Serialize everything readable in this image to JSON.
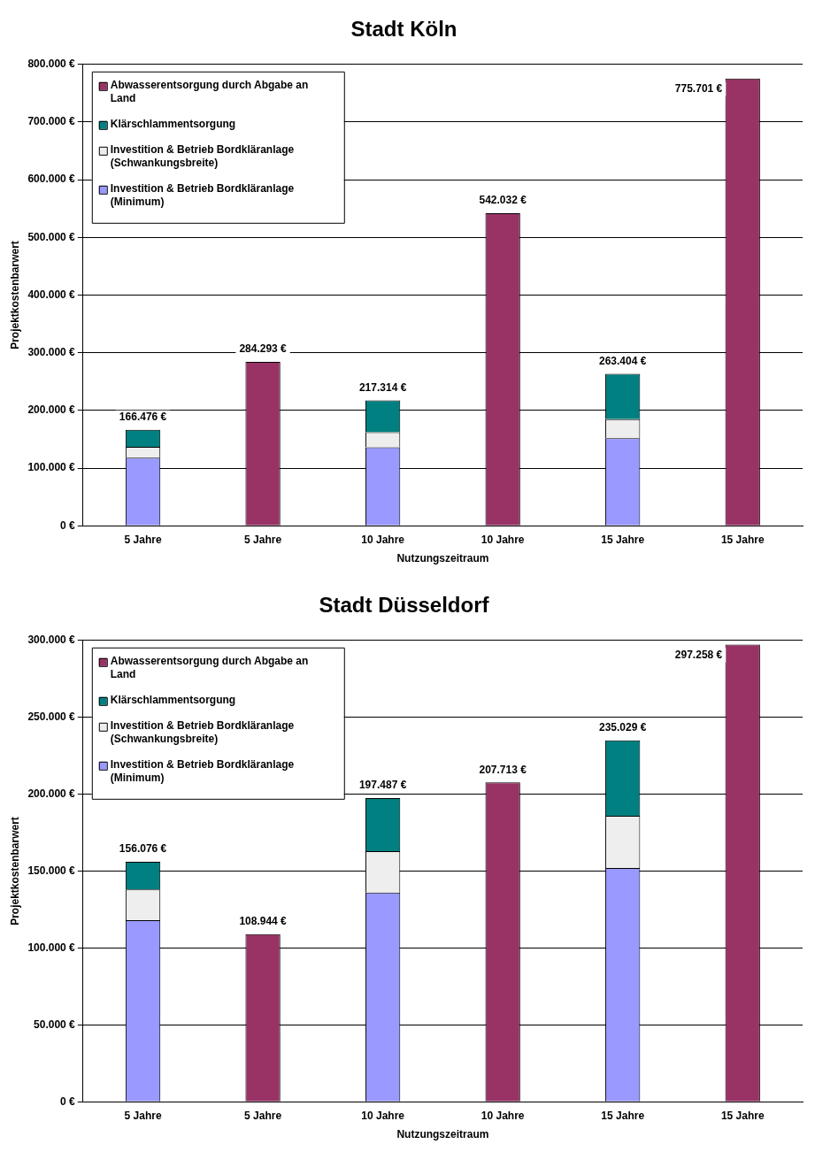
{
  "chart_data": [
    {
      "type": "bar",
      "title": "Stadt Köln",
      "xlabel": "Nutzungszeitraum",
      "ylabel": "Projektkostenbarwert",
      "stacked": true,
      "categories": [
        "5 Jahre",
        "5 Jahre",
        "10 Jahre",
        "10 Jahre",
        "15 Jahre",
        "15 Jahre"
      ],
      "series": [
        {
          "name": "Investition & Betrieb Bordkläranlage (Minimum)",
          "color": "#9999ff",
          "values": [
            118000,
            null,
            136000,
            null,
            152000,
            null
          ]
        },
        {
          "name": "Investition & Betrieb Bordkläranlage (Schwankungsbreite)",
          "color": "#eeeeee",
          "values": [
            19000,
            null,
            26000,
            null,
            33000,
            null
          ]
        },
        {
          "name": "Klärschlammentsorgung",
          "color": "#008080",
          "values": [
            29476,
            null,
            55314,
            null,
            78404,
            null
          ]
        },
        {
          "name": "Abwasserentsorgung durch Abgabe an Land",
          "color": "#993366",
          "values": [
            null,
            284293,
            null,
            542032,
            null,
            775701
          ]
        }
      ],
      "totals": [
        "166.476 €",
        "284.293 €",
        "217.314 €",
        "542.032 €",
        "263.404 €",
        "775.701 €"
      ],
      "ylim": [
        0,
        800000
      ],
      "yticks": [
        {
          "value": 0,
          "label": "0 €"
        },
        {
          "value": 100000,
          "label": "100.000 €"
        },
        {
          "value": 200000,
          "label": "200.000 €"
        },
        {
          "value": 300000,
          "label": "300.000 €"
        },
        {
          "value": 400000,
          "label": "400.000 €"
        },
        {
          "value": 500000,
          "label": "500.000 €"
        },
        {
          "value": 600000,
          "label": "600.000 €"
        },
        {
          "value": 700000,
          "label": "700.000 €"
        },
        {
          "value": 800000,
          "label": "800.000 €"
        }
      ],
      "grid": "y",
      "legend": "top left"
    },
    {
      "type": "bar",
      "title": "Stadt Düsseldorf",
      "xlabel": "Nutzungszeitraum",
      "ylabel": "Projektkostenbarwert",
      "stacked": true,
      "categories": [
        "5 Jahre",
        "5 Jahre",
        "10 Jahre",
        "10 Jahre",
        "15 Jahre",
        "15 Jahre"
      ],
      "series": [
        {
          "name": "Investition & Betrieb Bordkläranlage (Minimum)",
          "color": "#9999ff",
          "values": [
            118000,
            null,
            136000,
            null,
            152000,
            null
          ]
        },
        {
          "name": "Investition & Betrieb Bordkläranlage (Schwankungsbreite)",
          "color": "#eeeeee",
          "values": [
            20000,
            null,
            27000,
            null,
            34000,
            null
          ]
        },
        {
          "name": "Klärschlammentsorgung",
          "color": "#008080",
          "values": [
            18076,
            null,
            34487,
            null,
            49029,
            null
          ]
        },
        {
          "name": "Abwasserentsorgung durch Abgabe an Land",
          "color": "#993366",
          "values": [
            null,
            108944,
            null,
            207713,
            null,
            297258
          ]
        }
      ],
      "totals": [
        "156.076 €",
        "108.944 €",
        "197.487 €",
        "207.713 €",
        "235.029 €",
        "297.258 €"
      ],
      "ylim": [
        0,
        300000
      ],
      "yticks": [
        {
          "value": 0,
          "label": "0 €"
        },
        {
          "value": 50000,
          "label": "50.000 €"
        },
        {
          "value": 100000,
          "label": "100.000 €"
        },
        {
          "value": 150000,
          "label": "150.000 €"
        },
        {
          "value": 200000,
          "label": "200.000 €"
        },
        {
          "value": 250000,
          "label": "250.000 €"
        },
        {
          "value": 300000,
          "label": "300.000 €"
        }
      ],
      "grid": "y",
      "legend": "top left"
    }
  ]
}
